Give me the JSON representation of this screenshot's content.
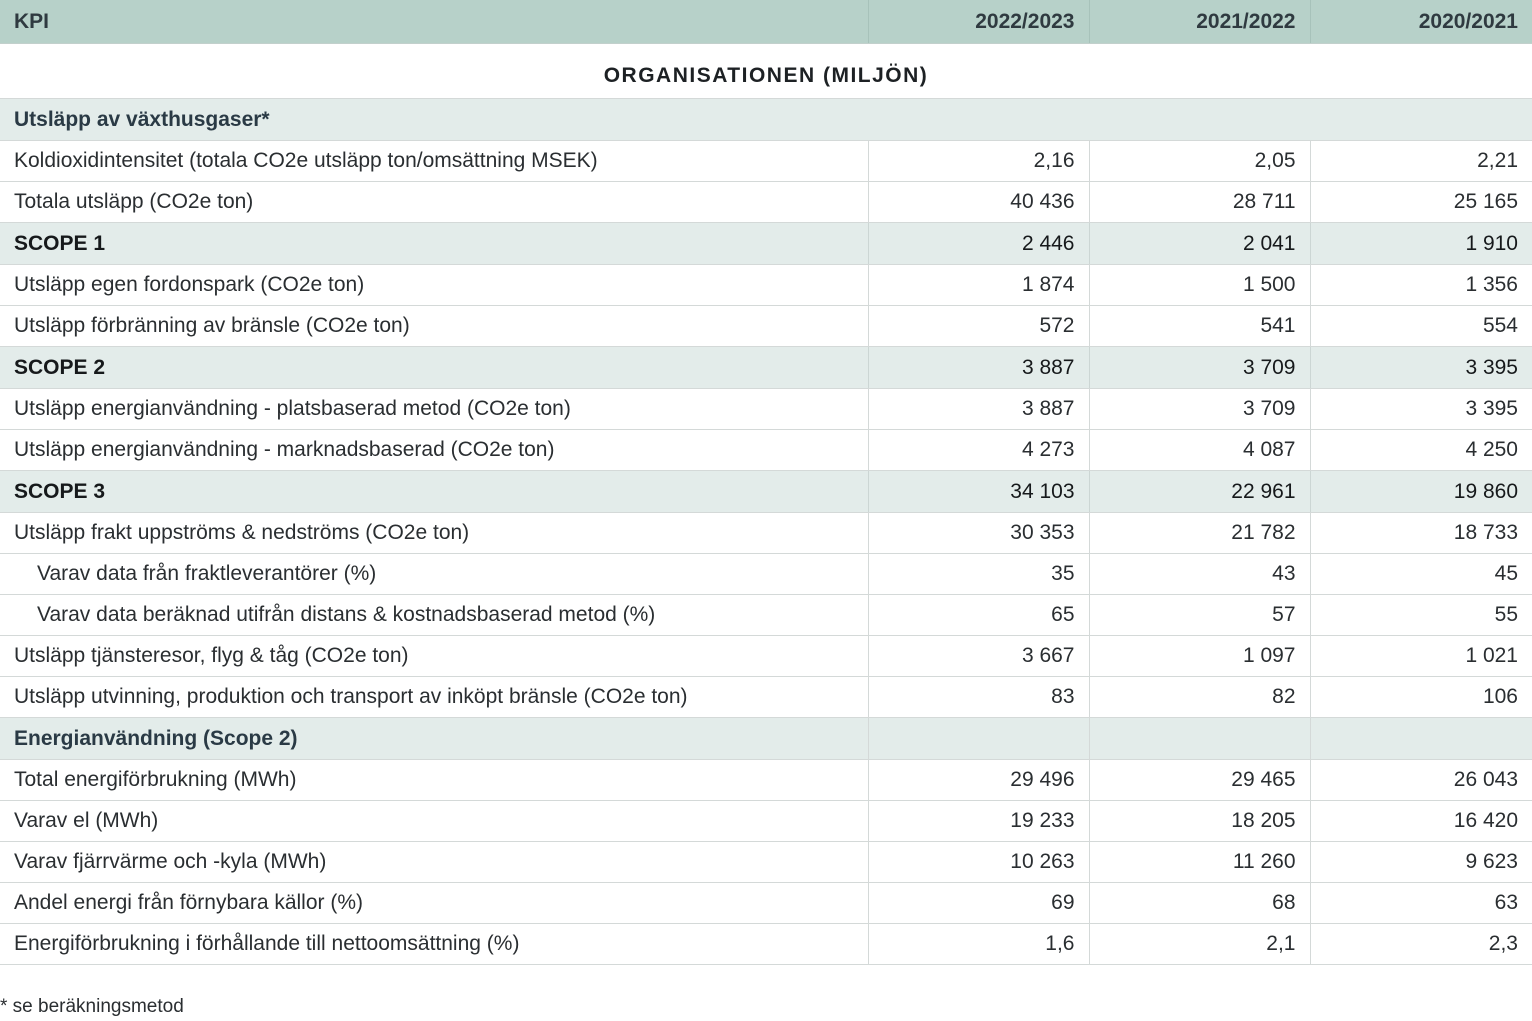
{
  "header": {
    "kpi_label": "KPI",
    "years": [
      "2022/2023",
      "2021/2022",
      "2020/2021"
    ]
  },
  "org_title": "ORGANISATIONEN (MILJÖN)",
  "sections": {
    "ghg_title": "Utsläpp av växthusgaser*",
    "energy_title": "Energianvändning (Scope 2)"
  },
  "rows": [
    {
      "label": "Koldioxidintensitet (totala CO2e utsläpp ton/omsättning MSEK)",
      "values": [
        "2,16",
        "2,05",
        "2,21"
      ]
    },
    {
      "label": "Totala utsläpp (CO2e ton)",
      "values": [
        "40 436",
        "28 711",
        "25 165"
      ]
    },
    {
      "label": "SCOPE 1",
      "values": [
        "2 446",
        "2 041",
        "1 910"
      ]
    },
    {
      "label": "Utsläpp egen fordonspark (CO2e ton)",
      "values": [
        "1 874",
        "1 500",
        "1 356"
      ]
    },
    {
      "label": "Utsläpp förbränning av bränsle  (CO2e ton)",
      "values": [
        "572",
        "541",
        "554"
      ]
    },
    {
      "label": "SCOPE 2",
      "values": [
        "3 887",
        "3 709",
        "3 395"
      ]
    },
    {
      "label": "Utsläpp energianvändning - platsbaserad metod (CO2e ton)",
      "values": [
        "3 887",
        "3 709",
        "3 395"
      ]
    },
    {
      "label": "Utsläpp energianvändning - marknadsbaserad (CO2e ton)",
      "values": [
        "4 273",
        "4 087",
        "4 250"
      ]
    },
    {
      "label": "SCOPE 3",
      "values": [
        "34 103",
        "22 961",
        "19 860"
      ]
    },
    {
      "label": "Utsläpp frakt uppströms & nedströms (CO2e ton)",
      "values": [
        "30 353",
        "21 782",
        "18 733"
      ]
    },
    {
      "label": "Varav data från fraktleverantörer (%)",
      "values": [
        "35",
        "43",
        "45"
      ]
    },
    {
      "label": "Varav data beräknad utifrån distans & kostnadsbaserad metod (%)",
      "values": [
        "65",
        "57",
        "55"
      ]
    },
    {
      "label": "Utsläpp tjänsteresor, flyg & tåg (CO2e ton)",
      "values": [
        "3 667",
        "1 097",
        "1 021"
      ]
    },
    {
      "label": "Utsläpp utvinning, produktion och transport av inköpt bränsle (CO2e ton)",
      "values": [
        "83",
        "82",
        "106"
      ]
    },
    {
      "label": "Total energiförbrukning (MWh)",
      "values": [
        "29 496",
        "29 465",
        "26 043"
      ]
    },
    {
      "label": "Varav el (MWh)",
      "values": [
        "19 233",
        "18 205",
        "16 420"
      ]
    },
    {
      "label": "Varav fjärrvärme och -kyla (MWh)",
      "values": [
        "10 263",
        "11 260",
        "9 623"
      ]
    },
    {
      "label": "Andel energi från förnybara källor (%)",
      "values": [
        "69",
        "68",
        "63"
      ]
    },
    {
      "label": "Energiförbrukning i förhållande till nettoomsättning (%)",
      "values": [
        "1,6",
        "2,1",
        "2,3"
      ]
    }
  ],
  "footnote": "* se beräkningsmetod",
  "colors": {
    "header_bg": "#b7d1c9",
    "section_bg": "#e3ecea",
    "divider": "#d4d9d8"
  }
}
